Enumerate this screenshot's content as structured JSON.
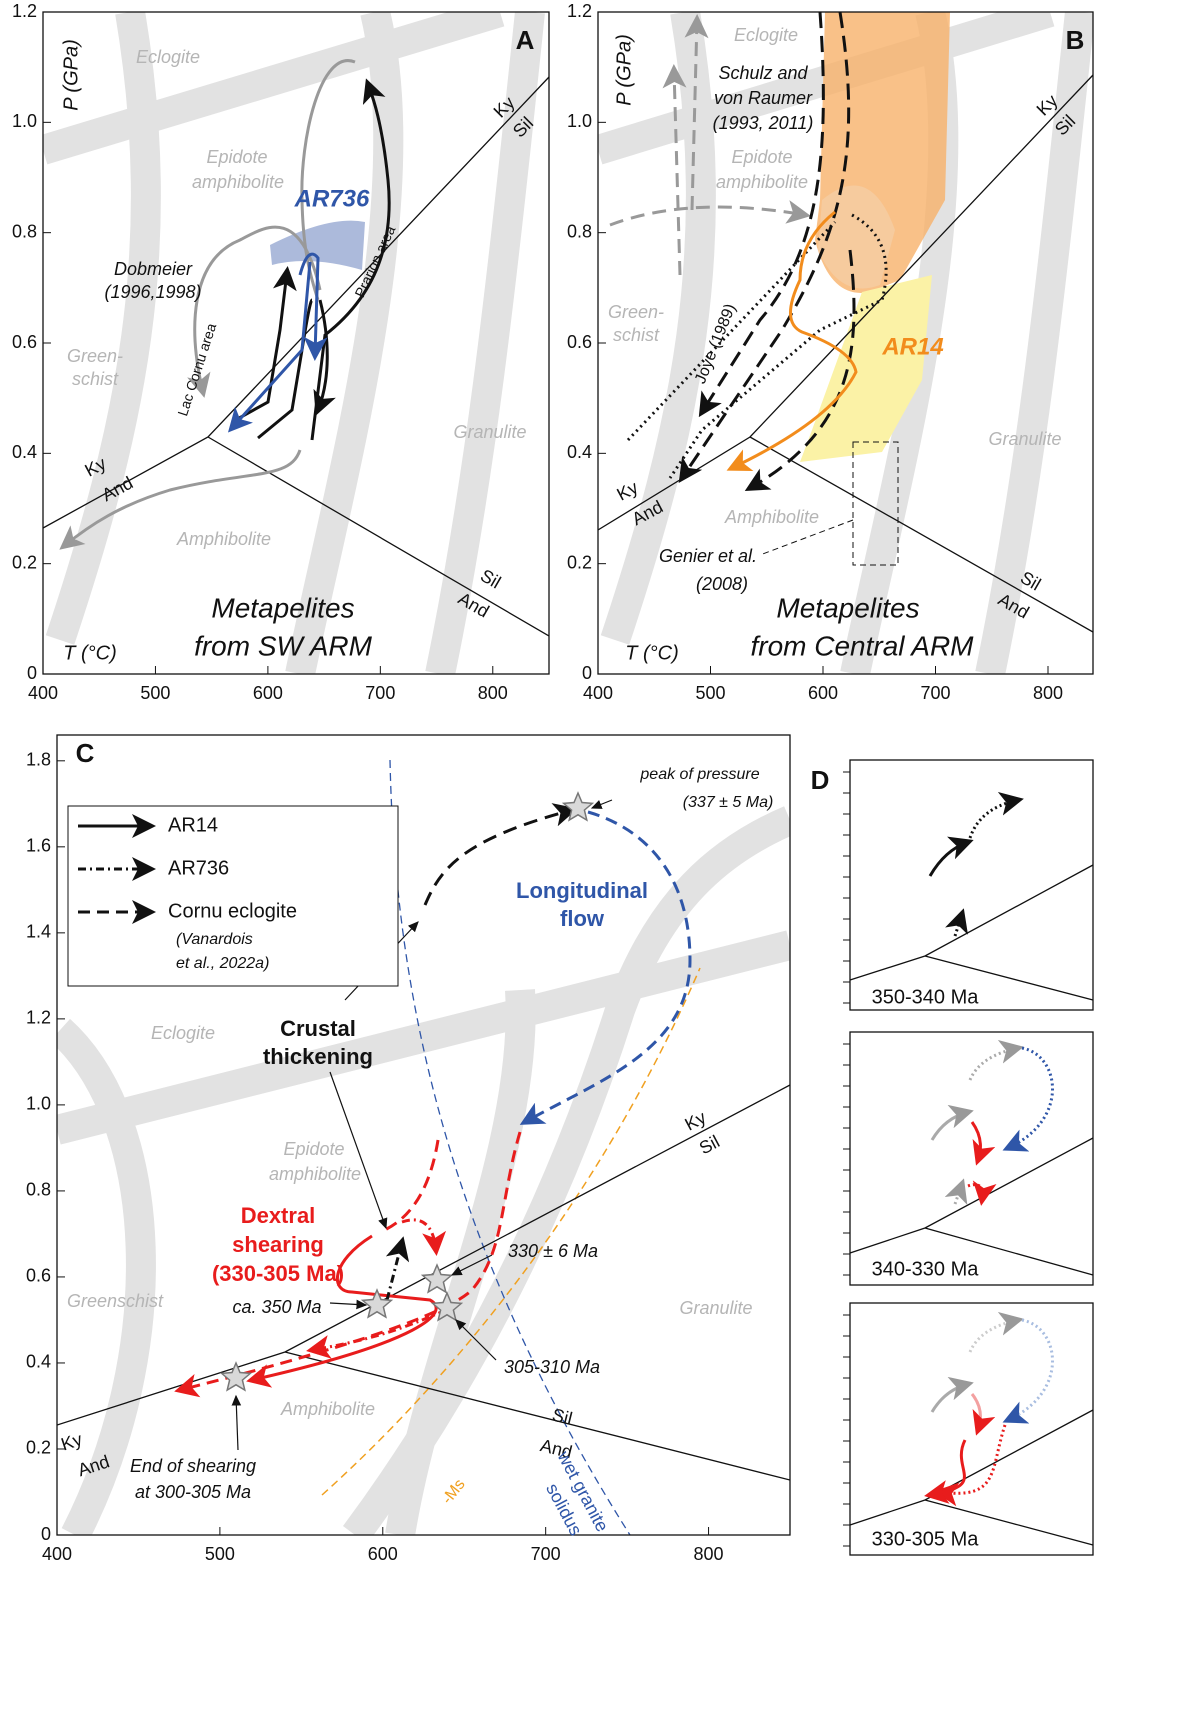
{
  "panels": [
    {
      "xlim": [
        400,
        850
      ],
      "ylim": [
        0,
        1.2
      ],
      "xticks": [
        400,
        500,
        600,
        700,
        800
      ],
      "yticks": [
        0,
        0.2,
        0.4,
        0.6,
        0.8,
        {
          "value": 1,
          "label": "1.0"
        },
        1.2
      ],
      "labels": {
        "letter": "A",
        "eclogite": "Eclogite",
        "epidote": "Epidote",
        "amph": "amphibolite",
        "green1": "Green-",
        "green2": "schist",
        "amphibolite": "Amphibolite",
        "granulite": "Granulite",
        "ky1": "Ky",
        "sil1": "Sil",
        "ky2": "Ky",
        "and2": "And",
        "sil2": "Sil",
        "and3": "And",
        "sample": "AR736",
        "author1": "Dobmeier",
        "author2": "(1996,1998)",
        "lac": "Lac Cornu area",
        "prarion": "Prarion area",
        "title1": "Metapelites",
        "title2": "from SW ARM",
        "plabel": "P (GPa)",
        "tlabel": "T (°C)"
      }
    },
    {
      "xlim": [
        400,
        840
      ],
      "ylim": [
        0,
        1.2
      ],
      "xticks": [
        400,
        500,
        600,
        700,
        800
      ],
      "yticks": [
        0,
        0.2,
        0.4,
        0.6,
        0.8,
        {
          "value": 1,
          "label": "1.0"
        },
        1.2
      ],
      "labels": {
        "letter": "B",
        "eclogite": "Eclogite",
        "epidote": "Epidote",
        "amph": "amphibolite",
        "green1": "Green-",
        "green2": "schist",
        "amphibolite": "Amphibolite",
        "granulite": "Granulite",
        "ky1": "Ky",
        "sil1": "Sil",
        "ky2": "Ky",
        "and2": "And",
        "sil2": "Sil",
        "and3": "And",
        "author1": "Schulz and",
        "author2": "von Raumer",
        "author3": "(1993, 2011)",
        "joye": "Joye (1989)",
        "sample": "AR14",
        "genier1": "Genier et al.",
        "genier2": "(2008)",
        "title1": "Metapelites",
        "title2": "from Central ARM",
        "plabel": "P (GPa)",
        "tlabel": "T (°C)"
      }
    },
    {
      "xlim": [
        400,
        850
      ],
      "ylim": [
        0,
        1.86
      ],
      "xticks": [
        400,
        500,
        600,
        700,
        800
      ],
      "yticks": [
        0,
        0.2,
        0.4,
        0.6,
        0.8,
        {
          "value": 1,
          "label": "1.0"
        },
        1.2,
        1.4,
        1.6,
        1.8
      ],
      "labels": {
        "letter": "C",
        "peak1": "peak of pressure",
        "peak2": "(337 ± 5 Ma)",
        "legend1": "AR14",
        "legend2": "AR736",
        "legend3": "Cornu eclogite",
        "legend4": "(Vanardois",
        "legend5": "et al., 2022a)",
        "long1": "Longitudinal",
        "long2": "flow",
        "crust1": "Crustal",
        "crust2": "thickening",
        "eclogite": "Eclogite",
        "epidote": "Epidote",
        "amph": "amphibolite",
        "dext1": "Dextral",
        "dext2": "shearing",
        "dext3": "(330-305 Ma)",
        "age1": "330 ± 6 Ma",
        "age2": "ca. 350 Ma",
        "age3": "305-310 Ma",
        "greenschist": "Greenschist",
        "granulite": "Granulite",
        "amphibolite": "Amphibolite",
        "ky1": "Ky",
        "sil1": "Sil",
        "ky2": "Ky",
        "and2": "And",
        "sil2": "Sil",
        "and3": "And",
        "ms": "-Ms",
        "wet1": "wet granite",
        "wet2": "solidus",
        "end1": "End of shearing",
        "end2": "at 300-305 Ma"
      }
    },
    {
      "labels": {
        "letter": "D",
        "box1": "350-340 Ma",
        "box2": "340-330 Ma",
        "box3": "330-305 Ma"
      }
    }
  ]
}
